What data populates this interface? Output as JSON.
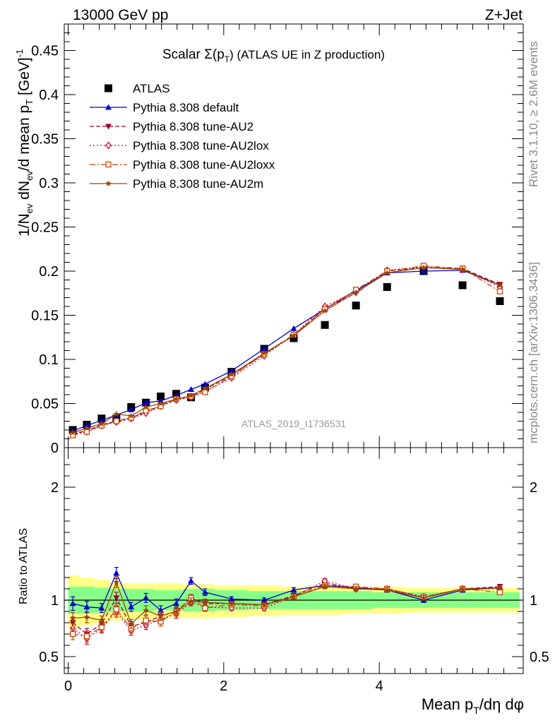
{
  "header": {
    "left": "13000 GeV pp",
    "right": "Z+Jet",
    "rivet": "Rivet 3.1.10, ≥ 2.6M events",
    "mcplots": "mcplots.cern.ch [arXiv:1306.3436]",
    "analysis": "ATLAS_2019_I1736531"
  },
  "chart_data": [
    {
      "type": "line",
      "panel": "main",
      "title": "Scalar Σ(p_T) (ATLAS UE in Z production)",
      "title_main": "Scalar Σ(p",
      "title_sub": "T",
      "title_rest": ") (ATLAS UE in Z production)",
      "ylabel": "1/N_ev dN_ev/d mean p_T [GeV]^-1",
      "ylabel_html": [
        "1/N",
        "ev",
        " dN",
        "ev",
        "/d mean p",
        "T",
        " [GeV]",
        "-1"
      ],
      "xlim": [
        -0.05,
        5.85
      ],
      "ylim": [
        0,
        0.48
      ],
      "yticks": [
        0,
        0.05,
        0.1,
        0.15,
        0.2,
        0.25,
        0.3,
        0.35,
        0.4,
        0.45
      ],
      "ytick_labels": [
        "0",
        "0.05",
        "0.1",
        "0.15",
        "0.2",
        "0.25",
        "0.3",
        "0.35",
        "0.4",
        "0.45"
      ],
      "legend_position": "top-left",
      "x": [
        0.06,
        0.24,
        0.43,
        0.62,
        0.81,
        1.0,
        1.19,
        1.39,
        1.58,
        1.76,
        2.1,
        2.52,
        2.9,
        3.3,
        3.7,
        4.1,
        4.57,
        5.07,
        5.55
      ],
      "series": [
        {
          "name": "ATLAS",
          "color": "#000000",
          "marker": "square-filled",
          "line": "none",
          "values": [
            0.02,
            0.026,
            0.033,
            0.033,
            0.046,
            0.051,
            0.058,
            0.061,
            0.057,
            0.068,
            0.086,
            0.112,
            0.124,
            0.139,
            0.161,
            0.182,
            0.2,
            0.184,
            0.166
          ]
        },
        {
          "name": "Pythia 8.308 default",
          "color": "#0000cc",
          "marker": "triangle-up-filled",
          "line": "solid",
          "values": [
            0.019,
            0.025,
            0.031,
            0.037,
            0.043,
            0.051,
            0.053,
            0.059,
            0.066,
            0.072,
            0.087,
            0.112,
            0.135,
            0.157,
            0.178,
            0.198,
            0.2,
            0.201,
            0.184
          ]
        },
        {
          "name": "Pythia 8.308 tune-AU2",
          "color": "#990033",
          "marker": "triangle-down-filled",
          "line": "dashed",
          "values": [
            0.016,
            0.019,
            0.026,
            0.03,
            0.034,
            0.04,
            0.048,
            0.055,
            0.058,
            0.066,
            0.082,
            0.106,
            0.127,
            0.158,
            0.175,
            0.2,
            0.204,
            0.203,
            0.185
          ]
        },
        {
          "name": "Pythia 8.308 tune-AU2lox",
          "color": "#cc0033",
          "marker": "diamond-open",
          "line": "dotted",
          "values": [
            0.015,
            0.018,
            0.025,
            0.029,
            0.033,
            0.039,
            0.047,
            0.054,
            0.057,
            0.064,
            0.079,
            0.104,
            0.128,
            0.16,
            0.177,
            0.201,
            0.205,
            0.202,
            0.182
          ]
        },
        {
          "name": "Pythia 8.308 tune-AU2loxx",
          "color": "#cc4400",
          "marker": "square-open",
          "line": "dashdot",
          "values": [
            0.014,
            0.018,
            0.025,
            0.03,
            0.034,
            0.042,
            0.047,
            0.055,
            0.058,
            0.063,
            0.081,
            0.106,
            0.128,
            0.157,
            0.179,
            0.2,
            0.206,
            0.203,
            0.177
          ]
        },
        {
          "name": "Pythia 8.308 tune-AU2m",
          "color": "#994400",
          "marker": "star",
          "line": "solid",
          "values": [
            0.017,
            0.022,
            0.027,
            0.038,
            0.036,
            0.046,
            0.05,
            0.055,
            0.059,
            0.067,
            0.083,
            0.107,
            0.127,
            0.155,
            0.176,
            0.198,
            0.204,
            0.202,
            0.184
          ]
        }
      ]
    },
    {
      "type": "line",
      "panel": "ratio",
      "ylabel": "Ratio to ATLAS",
      "xlabel": "Mean p_T/dη dφ",
      "xlabel_html": [
        "Mean p",
        "T",
        "/dη dφ"
      ],
      "xticks": [
        0,
        2,
        4
      ],
      "xtick_labels": [
        "0",
        "2",
        "4"
      ],
      "xlim": [
        -0.05,
        5.85
      ],
      "ylim": [
        0.35,
        2.35
      ],
      "yticks": [
        0.5,
        1,
        2
      ],
      "ytick_labels": [
        "0.5",
        "1",
        "2"
      ],
      "bins": [
        [
          0.0,
          0.15
        ],
        [
          0.15,
          0.33
        ],
        [
          0.33,
          0.52
        ],
        [
          0.52,
          0.71
        ],
        [
          0.71,
          0.9
        ],
        [
          0.9,
          1.09
        ],
        [
          1.09,
          1.29
        ],
        [
          1.29,
          1.48
        ],
        [
          1.48,
          1.67
        ],
        [
          1.67,
          1.88
        ],
        [
          1.88,
          2.31
        ],
        [
          2.31,
          2.72
        ],
        [
          2.72,
          3.1
        ],
        [
          3.1,
          3.5
        ],
        [
          3.5,
          3.9
        ],
        [
          3.9,
          4.32
        ],
        [
          4.32,
          4.82
        ],
        [
          4.82,
          5.32
        ],
        [
          5.32,
          5.8
        ]
      ],
      "band_inner": [
        [
          0.88,
          1.12
        ],
        [
          0.88,
          1.12
        ],
        [
          0.89,
          1.11
        ],
        [
          0.9,
          1.1
        ],
        [
          0.9,
          1.1
        ],
        [
          0.9,
          1.1
        ],
        [
          0.91,
          1.09
        ],
        [
          0.91,
          1.09
        ],
        [
          0.9,
          1.1
        ],
        [
          0.9,
          1.1
        ],
        [
          0.91,
          1.09
        ],
        [
          0.92,
          1.08
        ],
        [
          0.92,
          1.08
        ],
        [
          0.92,
          1.08
        ],
        [
          0.92,
          1.08
        ],
        [
          0.93,
          1.07
        ],
        [
          0.93,
          1.07
        ],
        [
          0.93,
          1.07
        ],
        [
          0.93,
          1.07
        ]
      ],
      "band_outer": [
        [
          0.76,
          1.22
        ],
        [
          0.78,
          1.2
        ],
        [
          0.8,
          1.18
        ],
        [
          0.82,
          1.16
        ],
        [
          0.83,
          1.15
        ],
        [
          0.83,
          1.15
        ],
        [
          0.84,
          1.15
        ],
        [
          0.84,
          1.15
        ],
        [
          0.84,
          1.14
        ],
        [
          0.84,
          1.14
        ],
        [
          0.85,
          1.13
        ],
        [
          0.86,
          1.13
        ],
        [
          0.87,
          1.12
        ],
        [
          0.87,
          1.12
        ],
        [
          0.88,
          1.12
        ],
        [
          0.88,
          1.12
        ],
        [
          0.89,
          1.11
        ],
        [
          0.89,
          1.11
        ],
        [
          0.89,
          1.11
        ]
      ],
      "x": [
        0.06,
        0.24,
        0.43,
        0.62,
        0.81,
        1.0,
        1.19,
        1.39,
        1.58,
        1.76,
        2.1,
        2.52,
        2.9,
        3.3,
        3.7,
        4.1,
        4.57,
        5.07,
        5.55
      ],
      "series": [
        {
          "name": "Pythia 8.308 default",
          "color": "#0000cc",
          "marker": "triangle-up-filled",
          "line": "solid",
          "values": [
            0.97,
            0.94,
            0.93,
            1.24,
            0.94,
            1.02,
            0.91,
            0.97,
            1.17,
            1.07,
            1.01,
            1.0,
            1.09,
            1.13,
            1.11,
            1.09,
            1.0,
            1.09,
            1.11
          ],
          "errors": [
            0.06,
            0.05,
            0.04,
            0.05,
            0.04,
            0.04,
            0.04,
            0.04,
            0.03,
            0.03,
            0.02,
            0.02,
            0.02,
            0.02,
            0.02,
            0.02,
            0.02,
            0.02,
            0.02
          ]
        },
        {
          "name": "Pythia 8.308 tune-AU2",
          "color": "#990033",
          "marker": "triangle-down-filled",
          "line": "dashed",
          "values": [
            0.8,
            0.7,
            0.79,
            1.02,
            0.77,
            0.8,
            0.86,
            0.9,
            1.02,
            0.97,
            0.97,
            0.96,
            1.04,
            1.15,
            1.1,
            1.1,
            1.02,
            1.1,
            1.12
          ],
          "errors": [
            0.05,
            0.05,
            0.04,
            0.05,
            0.04,
            0.04,
            0.04,
            0.04,
            0.03,
            0.03,
            0.02,
            0.02,
            0.02,
            0.02,
            0.02,
            0.02,
            0.02,
            0.02,
            0.02
          ]
        },
        {
          "name": "Pythia 8.308 tune-AU2lox",
          "color": "#cc0033",
          "marker": "diamond-open",
          "line": "dotted",
          "values": [
            0.75,
            0.66,
            0.75,
            0.9,
            0.73,
            0.78,
            0.83,
            0.88,
            0.98,
            0.94,
            0.93,
            0.93,
            1.03,
            1.17,
            1.1,
            1.1,
            1.03,
            1.1,
            1.1
          ],
          "errors": [
            0.05,
            0.05,
            0.04,
            0.05,
            0.04,
            0.04,
            0.04,
            0.04,
            0.03,
            0.03,
            0.02,
            0.02,
            0.02,
            0.02,
            0.02,
            0.02,
            0.02,
            0.02,
            0.02
          ]
        },
        {
          "name": "Pythia 8.308 tune-AU2loxx",
          "color": "#cc4400",
          "marker": "square-open",
          "line": "dashdot",
          "values": [
            0.7,
            0.68,
            0.76,
            0.92,
            0.75,
            0.82,
            0.81,
            0.9,
            1.02,
            0.93,
            0.96,
            0.95,
            1.03,
            1.13,
            1.12,
            1.1,
            1.03,
            1.1,
            1.07
          ],
          "errors": [
            0.05,
            0.05,
            0.04,
            0.05,
            0.04,
            0.04,
            0.04,
            0.04,
            0.03,
            0.03,
            0.02,
            0.02,
            0.02,
            0.02,
            0.02,
            0.02,
            0.02,
            0.02,
            0.02
          ]
        },
        {
          "name": "Pythia 8.308 tune-AU2m",
          "color": "#994400",
          "marker": "star",
          "line": "solid",
          "values": [
            0.84,
            0.85,
            0.82,
            1.16,
            0.79,
            0.91,
            0.86,
            0.9,
            0.99,
            0.98,
            0.97,
            0.96,
            1.03,
            1.12,
            1.1,
            1.09,
            1.02,
            1.1,
            1.11
          ],
          "errors": [
            0.05,
            0.05,
            0.04,
            0.05,
            0.04,
            0.04,
            0.04,
            0.04,
            0.03,
            0.03,
            0.02,
            0.02,
            0.02,
            0.02,
            0.02,
            0.02,
            0.02,
            0.02,
            0.02
          ]
        }
      ]
    }
  ]
}
